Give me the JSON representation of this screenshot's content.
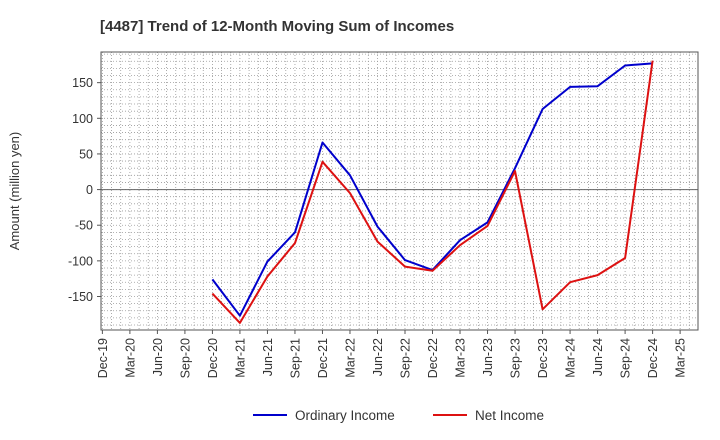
{
  "chart_data": {
    "type": "line",
    "title": "[4487]  Trend of 12-Month Moving Sum of Incomes",
    "xlabel": "",
    "ylabel": "Amount (million yen)",
    "x_tick_labels": [
      "Dec-19",
      "Mar-20",
      "Jun-20",
      "Sep-20",
      "Dec-20",
      "Mar-21",
      "Jun-21",
      "Sep-21",
      "Dec-21",
      "Mar-22",
      "Jun-22",
      "Sep-22",
      "Dec-22",
      "Mar-23",
      "Jun-23",
      "Sep-23",
      "Dec-23",
      "Mar-24",
      "Jun-24",
      "Sep-24",
      "Dec-24",
      "Mar-25"
    ],
    "y_ticks": [
      -150,
      -100,
      -50,
      0,
      50,
      100,
      150
    ],
    "ylim": [
      -197,
      193
    ],
    "grid": true,
    "legend_position": "bottom-center",
    "series": [
      {
        "name": "Ordinary Income",
        "color": "#0000cc",
        "values": [
          null,
          null,
          null,
          null,
          -126,
          -177,
          -101,
          -60,
          66,
          20,
          -52,
          -99,
          -113,
          -71,
          -46,
          30,
          113,
          144,
          145,
          174,
          177,
          null
        ]
      },
      {
        "name": "Net Income",
        "color": "#dd1111",
        "values": [
          null,
          null,
          null,
          null,
          -146,
          -187,
          -122,
          -75,
          39,
          -5,
          -73,
          -108,
          -114,
          -78,
          -51,
          26,
          -168,
          -130,
          -120,
          -96,
          181,
          null
        ]
      }
    ]
  }
}
